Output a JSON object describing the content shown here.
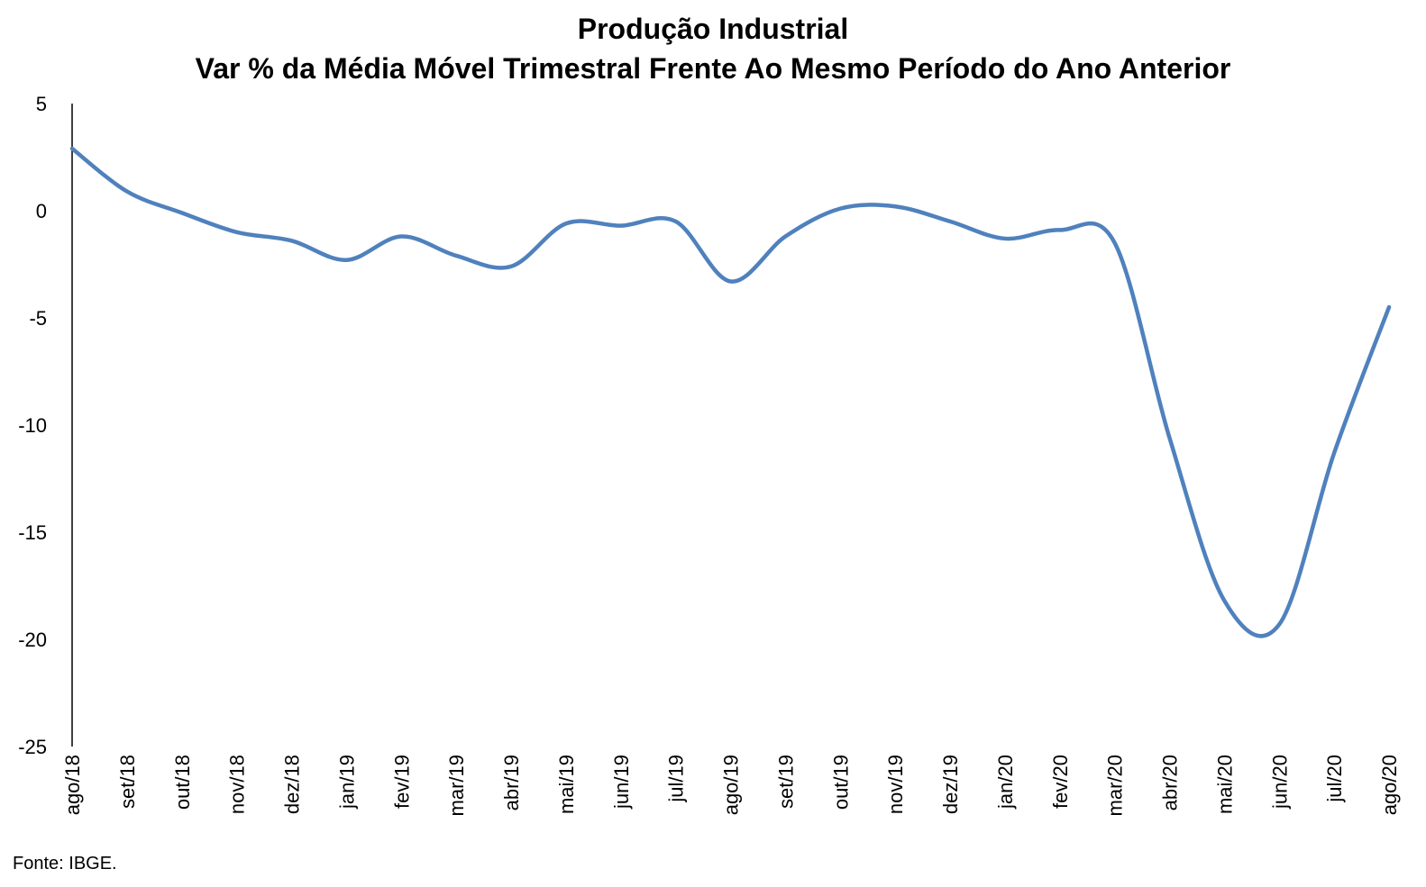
{
  "chart_data": {
    "type": "line",
    "title": "Produção Industrial",
    "subtitle": "Var % da Média Móvel Trimestral Frente Ao Mesmo Período do Ano Anterior",
    "categories": [
      "ago/18",
      "set/18",
      "out/18",
      "nov/18",
      "dez/18",
      "jan/19",
      "fev/19",
      "mar/19",
      "abr/19",
      "mai/19",
      "jun/19",
      "jul/19",
      "ago/19",
      "set/19",
      "out/19",
      "nov/19",
      "dez/19",
      "jan/20",
      "fev/20",
      "mar/20",
      "abr/20",
      "mai/20",
      "jun/20",
      "jul/20",
      "ago/20"
    ],
    "series": [
      {
        "values": [
          2.9,
          0.9,
          -0.1,
          -1.0,
          -1.4,
          -2.3,
          -1.2,
          -2.1,
          -2.6,
          -0.6,
          -0.7,
          -0.5,
          -3.3,
          -1.2,
          0.1,
          0.2,
          -0.5,
          -1.3,
          -0.9,
          -1.5,
          -10.6,
          -18.2,
          -19.3,
          -11.3,
          -4.5
        ],
        "color": "#4f81bd"
      }
    ],
    "yticks": [
      5,
      0,
      -5,
      -10,
      -15,
      -20,
      -25
    ],
    "ylim": [
      -25,
      5
    ],
    "grid": false,
    "legend": "none"
  },
  "source_note": "Fonte: IBGE."
}
